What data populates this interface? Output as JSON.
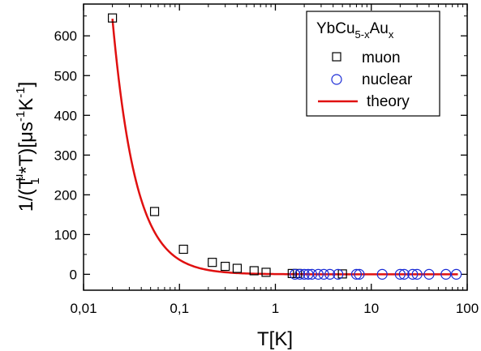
{
  "chart_data": {
    "type": "scatter",
    "xscale": "log",
    "xlim": [
      0.01,
      100
    ],
    "ylim": [
      -40,
      680
    ],
    "x_ticks": [
      {
        "value": 0.01,
        "label": "0,01"
      },
      {
        "value": 0.1,
        "label": "0,1"
      },
      {
        "value": 1,
        "label": "1"
      },
      {
        "value": 10,
        "label": "10"
      },
      {
        "value": 100,
        "label": "100"
      }
    ],
    "y_ticks": [
      {
        "value": 0,
        "label": "0"
      },
      {
        "value": 100,
        "label": "100"
      },
      {
        "value": 200,
        "label": "200"
      },
      {
        "value": 300,
        "label": "300"
      },
      {
        "value": 400,
        "label": "400"
      },
      {
        "value": 500,
        "label": "500"
      },
      {
        "value": 600,
        "label": "600"
      }
    ],
    "xlabel": "T[K]",
    "ylabel": "1/(T₁^μ*T)[μs⁻¹K⁻¹]",
    "ylabel_parts": {
      "a": "1/(T",
      "sup": "μ",
      "sub": "1",
      "b": "*T)[μs",
      "exp": "-1",
      "c": "K",
      "d": "]"
    },
    "legend": {
      "placement": "top-right",
      "title": "YbCu5-xAux",
      "title_parts": {
        "a": "YbCu",
        "s1": "5-x",
        "b": "Au",
        "s2": "x"
      },
      "entries": [
        {
          "label": "muon",
          "marker": "square",
          "color": "#000000"
        },
        {
          "label": "nuclear",
          "marker": "circle",
          "color": "#1a2bd6"
        },
        {
          "label": "theory",
          "marker": "line",
          "color": "#e01010"
        }
      ]
    },
    "series": [
      {
        "name": "muon",
        "marker": "square",
        "color": "#000000",
        "points": [
          [
            0.02,
            645
          ],
          [
            0.055,
            158
          ],
          [
            0.11,
            63
          ],
          [
            0.22,
            30
          ],
          [
            0.3,
            20
          ],
          [
            0.4,
            15
          ],
          [
            0.6,
            9
          ],
          [
            0.8,
            5
          ],
          [
            1.5,
            2
          ],
          [
            1.7,
            2
          ],
          [
            5.0,
            1
          ]
        ]
      },
      {
        "name": "nuclear",
        "marker": "circle",
        "color": "#1a2bd6",
        "points": [
          [
            1.6,
            0
          ],
          [
            1.8,
            0
          ],
          [
            2.0,
            0
          ],
          [
            2.2,
            0
          ],
          [
            2.4,
            0
          ],
          [
            2.8,
            0
          ],
          [
            3.2,
            0
          ],
          [
            3.7,
            0
          ],
          [
            4.5,
            0
          ],
          [
            7.0,
            0
          ],
          [
            7.5,
            0
          ],
          [
            13,
            0
          ],
          [
            20,
            0
          ],
          [
            22,
            0
          ],
          [
            27,
            0
          ],
          [
            30,
            0
          ],
          [
            40,
            0
          ],
          [
            60,
            0
          ],
          [
            77,
            0
          ]
        ]
      },
      {
        "name": "theory",
        "type": "line",
        "color": "#e01010",
        "x_range": [
          0.02,
          80
        ],
        "y_at_x_min": 643,
        "decay_exponent": 1.78
      }
    ]
  }
}
